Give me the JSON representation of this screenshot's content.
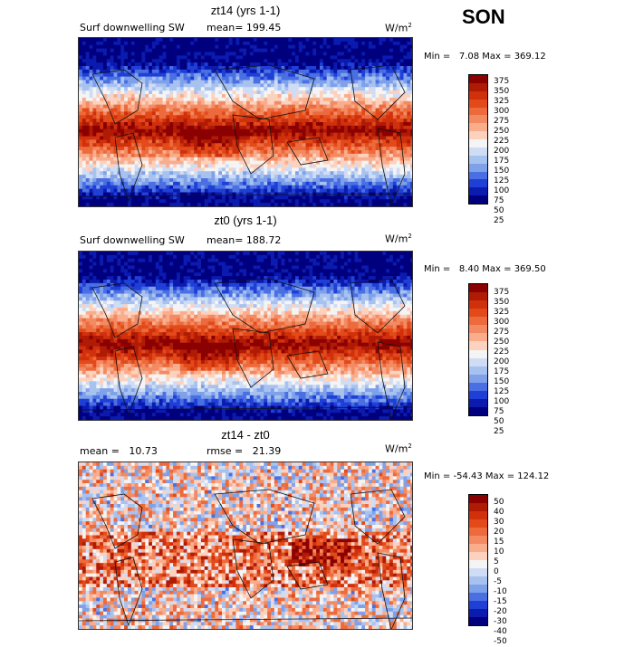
{
  "season": "SON",
  "units_prefix": "W/m",
  "units_exp": "2",
  "panels": [
    {
      "title": "zt14 (yrs 1-1)",
      "left_label": "Surf downwelling SW",
      "mean_label": "mean= 199.45",
      "minmax": "Min =   7.08 Max = 369.12",
      "levels": [
        "375",
        "350",
        "325",
        "300",
        "275",
        "250",
        "225",
        "200",
        "175",
        "150",
        "125",
        "100",
        "75",
        "50",
        "25"
      ],
      "colors": [
        "#8b0000",
        "#b01b05",
        "#d0300c",
        "#e24a1a",
        "#ec6a3c",
        "#f38a62",
        "#f9ad8d",
        "#fcd2bf",
        "#f4f4f4",
        "#cfdcf5",
        "#a8c2f0",
        "#7ea1ea",
        "#4a6fe3",
        "#1f3fd6",
        "#0b1bb0",
        "#00007f"
      ]
    },
    {
      "title": "zt0 (yrs 1-1)",
      "left_label": "Surf downwelling SW",
      "mean_label": "mean= 188.72",
      "minmax": "Min =   8.40 Max = 369.50",
      "levels": [
        "375",
        "350",
        "325",
        "300",
        "275",
        "250",
        "225",
        "200",
        "175",
        "150",
        "125",
        "100",
        "75",
        "50",
        "25"
      ],
      "colors": [
        "#8b0000",
        "#b01b05",
        "#d0300c",
        "#e24a1a",
        "#ec6a3c",
        "#f38a62",
        "#f9ad8d",
        "#fcd2bf",
        "#f4f4f4",
        "#cfdcf5",
        "#a8c2f0",
        "#7ea1ea",
        "#4a6fe3",
        "#1f3fd6",
        "#0b1bb0",
        "#00007f"
      ]
    },
    {
      "title": "zt14 - zt0",
      "left_label": "mean =   10.73",
      "mean_label": "rmse =   21.39",
      "minmax": "Min = -54.43 Max = 124.12",
      "levels": [
        "50",
        "40",
        "30",
        "20",
        "15",
        "10",
        "5",
        "0",
        "-5",
        "-10",
        "-15",
        "-20",
        "-30",
        "-40",
        "-50"
      ],
      "colors": [
        "#8b0000",
        "#b01b05",
        "#d0300c",
        "#e24a1a",
        "#ec6a3c",
        "#f38a62",
        "#f9ad8d",
        "#fcd2bf",
        "#f4f4f4",
        "#cfdcf5",
        "#a8c2f0",
        "#7ea1ea",
        "#4a6fe3",
        "#1f3fd6",
        "#0b1bb0",
        "#00007f"
      ]
    }
  ],
  "chart_data": [
    {
      "type": "heatmap",
      "title": "zt14 (yrs 1-1)",
      "variable": "Surf downwelling SW",
      "units": "W/m2",
      "mean": 199.45,
      "min": 7.08,
      "max": 369.12,
      "levels": [
        25,
        50,
        75,
        100,
        125,
        150,
        175,
        200,
        225,
        250,
        275,
        300,
        325,
        350,
        375
      ]
    },
    {
      "type": "heatmap",
      "title": "zt0 (yrs 1-1)",
      "variable": "Surf downwelling SW",
      "units": "W/m2",
      "mean": 188.72,
      "min": 8.4,
      "max": 369.5,
      "levels": [
        25,
        50,
        75,
        100,
        125,
        150,
        175,
        200,
        225,
        250,
        275,
        300,
        325,
        350,
        375
      ]
    },
    {
      "type": "heatmap",
      "title": "zt14 - zt0",
      "units": "W/m2",
      "mean": 10.73,
      "rmse": 21.39,
      "min": -54.43,
      "max": 124.12,
      "levels": [
        -50,
        -40,
        -30,
        -20,
        -15,
        -10,
        -5,
        0,
        5,
        10,
        15,
        20,
        30,
        40,
        50
      ]
    }
  ]
}
